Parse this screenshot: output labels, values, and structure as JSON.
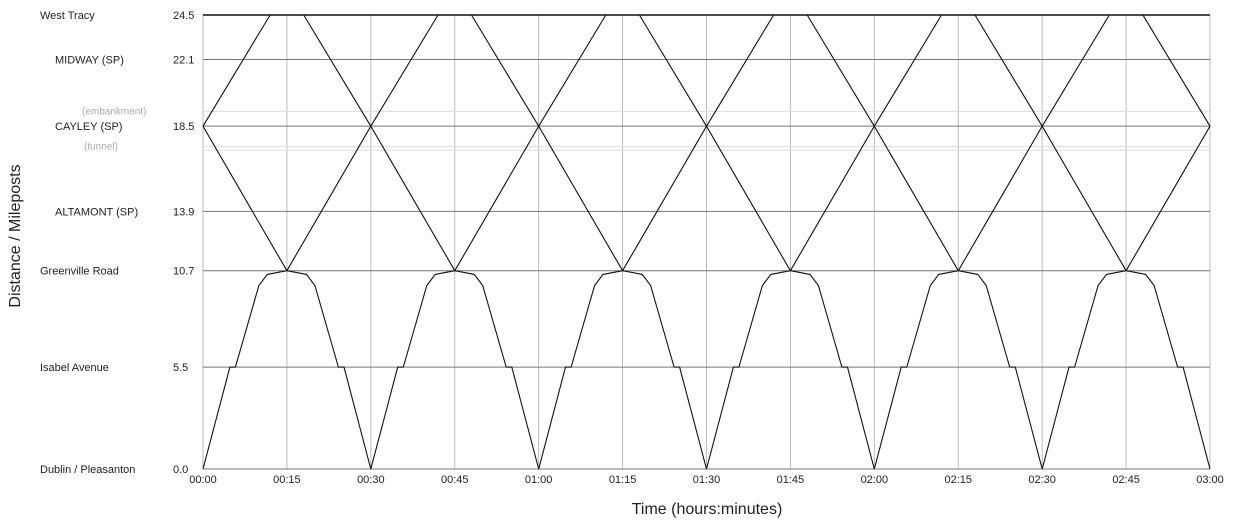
{
  "chart_data": {
    "type": "line",
    "title": "",
    "xlabel": "Time (hours:minutes)",
    "ylabel": "Distance / Mileposts",
    "xlim_minutes": [
      0,
      180
    ],
    "ylim": [
      0,
      24.5
    ],
    "x_ticks": [
      "00:00",
      "00:15",
      "00:30",
      "00:45",
      "01:00",
      "01:15",
      "01:30",
      "01:45",
      "02:00",
      "02:15",
      "02:30",
      "02:45",
      "03:00"
    ],
    "stations": [
      {
        "name": "West Tracy",
        "milepost": "24.5",
        "value": 24.5
      },
      {
        "name": "MIDWAY (SP)",
        "milepost": "22.1",
        "value": 22.1
      },
      {
        "name": "CAYLEY (SP)",
        "milepost": "18.5",
        "value": 18.5
      },
      {
        "name": "ALTAMONT (SP)",
        "milepost": "13.9",
        "value": 13.9
      },
      {
        "name": "Greenville Road",
        "milepost": "10.7",
        "value": 10.7
      },
      {
        "name": "Isabel Avenue",
        "milepost": "5.5",
        "value": 5.5
      },
      {
        "name": "Dublin / Pleasanton",
        "milepost": "0.0",
        "value": 0.0
      }
    ],
    "annotations": [
      {
        "text": "(embankment)",
        "value": 19.3
      },
      {
        "text": "(tunnel)",
        "value": 17.4
      }
    ],
    "annotation_lines": [
      19.3,
      17.4,
      17.2
    ],
    "grid": true,
    "series": [
      {
        "values": [
          [
            0,
            0
          ],
          [
            4.8,
            5.5
          ],
          [
            5.8,
            5.5
          ],
          [
            10,
            9.9
          ],
          [
            11.5,
            10.5
          ],
          [
            15,
            10.7
          ]
        ]
      },
      {
        "values": [
          [
            15,
            10.7
          ],
          [
            18.5,
            10.5
          ],
          [
            20,
            9.9
          ],
          [
            24.2,
            5.5
          ],
          [
            25.2,
            5.5
          ],
          [
            30,
            0
          ]
        ]
      },
      {
        "values": [
          [
            30,
            0
          ],
          [
            34.8,
            5.5
          ],
          [
            35.8,
            5.5
          ],
          [
            40,
            9.9
          ],
          [
            41.5,
            10.5
          ],
          [
            45,
            10.7
          ]
        ]
      },
      {
        "values": [
          [
            45,
            10.7
          ],
          [
            48.5,
            10.5
          ],
          [
            50,
            9.9
          ],
          [
            54.2,
            5.5
          ],
          [
            55.2,
            5.5
          ],
          [
            60,
            0
          ]
        ]
      },
      {
        "values": [
          [
            60,
            0
          ],
          [
            64.8,
            5.5
          ],
          [
            65.8,
            5.5
          ],
          [
            70,
            9.9
          ],
          [
            71.5,
            10.5
          ],
          [
            75,
            10.7
          ]
        ]
      },
      {
        "values": [
          [
            75,
            10.7
          ],
          [
            78.5,
            10.5
          ],
          [
            80,
            9.9
          ],
          [
            84.2,
            5.5
          ],
          [
            85.2,
            5.5
          ],
          [
            90,
            0
          ]
        ]
      },
      {
        "values": [
          [
            90,
            0
          ],
          [
            94.8,
            5.5
          ],
          [
            95.8,
            5.5
          ],
          [
            100,
            9.9
          ],
          [
            101.5,
            10.5
          ],
          [
            105,
            10.7
          ]
        ]
      },
      {
        "values": [
          [
            105,
            10.7
          ],
          [
            108.5,
            10.5
          ],
          [
            110,
            9.9
          ],
          [
            114.2,
            5.5
          ],
          [
            115.2,
            5.5
          ],
          [
            120,
            0
          ]
        ]
      },
      {
        "values": [
          [
            120,
            0
          ],
          [
            124.8,
            5.5
          ],
          [
            125.8,
            5.5
          ],
          [
            130,
            9.9
          ],
          [
            131.5,
            10.5
          ],
          [
            135,
            10.7
          ]
        ]
      },
      {
        "values": [
          [
            135,
            10.7
          ],
          [
            138.5,
            10.5
          ],
          [
            140,
            9.9
          ],
          [
            144.2,
            5.5
          ],
          [
            145.2,
            5.5
          ],
          [
            150,
            0
          ]
        ]
      },
      {
        "values": [
          [
            150,
            0
          ],
          [
            154.8,
            5.5
          ],
          [
            155.8,
            5.5
          ],
          [
            160,
            9.9
          ],
          [
            161.5,
            10.5
          ],
          [
            165,
            10.7
          ]
        ]
      },
      {
        "values": [
          [
            165,
            10.7
          ],
          [
            168.5,
            10.5
          ],
          [
            170,
            9.9
          ],
          [
            174.2,
            5.5
          ],
          [
            175.2,
            5.5
          ],
          [
            180,
            0
          ]
        ]
      },
      {
        "values": [
          [
            0,
            18.5
          ],
          [
            15,
            10.7
          ]
        ]
      },
      {
        "values": [
          [
            15,
            10.7
          ],
          [
            30,
            18.5
          ]
        ]
      },
      {
        "values": [
          [
            30,
            18.5
          ],
          [
            45,
            10.7
          ]
        ]
      },
      {
        "values": [
          [
            45,
            10.7
          ],
          [
            60,
            18.5
          ]
        ]
      },
      {
        "values": [
          [
            60,
            18.5
          ],
          [
            75,
            10.7
          ]
        ]
      },
      {
        "values": [
          [
            75,
            10.7
          ],
          [
            90,
            18.5
          ]
        ]
      },
      {
        "values": [
          [
            90,
            18.5
          ],
          [
            105,
            10.7
          ]
        ]
      },
      {
        "values": [
          [
            105,
            10.7
          ],
          [
            120,
            18.5
          ]
        ]
      },
      {
        "values": [
          [
            120,
            18.5
          ],
          [
            135,
            10.7
          ]
        ]
      },
      {
        "values": [
          [
            135,
            10.7
          ],
          [
            150,
            18.5
          ]
        ]
      },
      {
        "values": [
          [
            150,
            18.5
          ],
          [
            165,
            10.7
          ]
        ]
      },
      {
        "values": [
          [
            165,
            10.7
          ],
          [
            180,
            18.5
          ]
        ]
      },
      {
        "values": [
          [
            0,
            18.5
          ],
          [
            12,
            24.5
          ]
        ]
      },
      {
        "values": [
          [
            18,
            24.5
          ],
          [
            30,
            18.5
          ]
        ]
      },
      {
        "values": [
          [
            30,
            18.5
          ],
          [
            42,
            24.5
          ]
        ]
      },
      {
        "values": [
          [
            48,
            24.5
          ],
          [
            60,
            18.5
          ]
        ]
      },
      {
        "values": [
          [
            60,
            18.5
          ],
          [
            72,
            24.5
          ]
        ]
      },
      {
        "values": [
          [
            78,
            24.5
          ],
          [
            90,
            18.5
          ]
        ]
      },
      {
        "values": [
          [
            90,
            18.5
          ],
          [
            102,
            24.5
          ]
        ]
      },
      {
        "values": [
          [
            108,
            24.5
          ],
          [
            120,
            18.5
          ]
        ]
      },
      {
        "values": [
          [
            120,
            18.5
          ],
          [
            132,
            24.5
          ]
        ]
      },
      {
        "values": [
          [
            138,
            24.5
          ],
          [
            150,
            18.5
          ]
        ]
      },
      {
        "values": [
          [
            150,
            18.5
          ],
          [
            162,
            24.5
          ]
        ]
      },
      {
        "values": [
          [
            168,
            24.5
          ],
          [
            180,
            18.5
          ]
        ]
      }
    ]
  }
}
